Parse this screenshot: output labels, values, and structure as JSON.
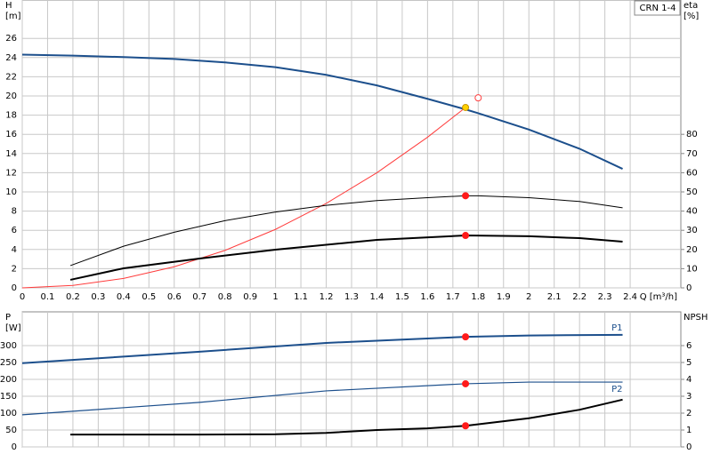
{
  "chart_data": [
    {
      "type": "line",
      "annotation": "CRN 1-4",
      "ylabel": [
        "H",
        "[m]"
      ],
      "y2label": [
        "eta",
        "[%]"
      ],
      "xlabel": "Q [m³/h]",
      "xlim": [
        0,
        2.6
      ],
      "xticks": [
        0,
        0.1,
        0.2,
        0.3,
        0.4,
        0.5,
        0.6,
        0.7,
        0.8,
        0.9,
        1.0,
        1.1,
        1.2,
        1.3,
        1.4,
        1.5,
        1.6,
        1.7,
        1.8,
        1.9,
        2.0,
        2.1,
        2.2,
        2.3,
        2.4
      ],
      "ylim": [
        0,
        30
      ],
      "yticks": [
        0,
        2,
        4,
        6,
        8,
        10,
        12,
        14,
        16,
        18,
        20,
        22,
        24,
        26
      ],
      "y2lim": [
        0,
        150
      ],
      "y2ticks": [
        0,
        10,
        20,
        30,
        40,
        50,
        60,
        70,
        80
      ],
      "grid": true,
      "series": [
        {
          "color": "#1c4f8c",
          "linewidth": 2,
          "x": [
            0,
            0.2,
            0.4,
            0.6,
            0.8,
            1.0,
            1.2,
            1.4,
            1.6,
            1.75,
            1.8,
            2.0,
            2.2,
            2.37
          ],
          "values": [
            24.3,
            24.2,
            24.05,
            23.85,
            23.5,
            23.0,
            22.2,
            21.1,
            19.7,
            18.6,
            18.2,
            16.5,
            14.5,
            12.4
          ]
        },
        {
          "color": "#ff3b3b",
          "linewidth": 1,
          "x": [
            0,
            0.2,
            0.4,
            0.6,
            0.8,
            1.0,
            1.2,
            1.4,
            1.6,
            1.75
          ],
          "values": [
            0,
            0.25,
            0.98,
            2.2,
            3.9,
            6.1,
            8.8,
            12.0,
            15.7,
            18.8
          ]
        },
        {
          "color": "#000000",
          "linewidth": 1,
          "axis": "y2",
          "x": [
            0.19,
            0.4,
            0.6,
            0.8,
            1.0,
            1.2,
            1.4,
            1.6,
            1.75,
            1.8,
            2.0,
            2.2,
            2.37
          ],
          "values": [
            11.6,
            21.7,
            29,
            35,
            39.5,
            43,
            45.5,
            47,
            48,
            48,
            47,
            45,
            41.7
          ]
        },
        {
          "color": "#000000",
          "linewidth": 2,
          "axis": "y2",
          "x": [
            0.19,
            0.4,
            0.7,
            1.0,
            1.4,
            1.75,
            2.0,
            2.2,
            2.37
          ],
          "values": [
            4.2,
            10.2,
            15.3,
            19.9,
            25,
            27.3,
            26.9,
            25.9,
            24.1
          ]
        }
      ],
      "markers": [
        {
          "x": 1.75,
          "y": 18.8,
          "color": "#ffd200",
          "edge": "#c89600"
        },
        {
          "x": 1.8,
          "y": 19.8,
          "color": "#ff3b3b",
          "hollow": true
        },
        {
          "x": 1.75,
          "y": 48,
          "axis": "y2",
          "color": "#ff1a1a"
        },
        {
          "x": 1.75,
          "y": 27.3,
          "axis": "y2",
          "color": "#ff1a1a"
        }
      ]
    },
    {
      "type": "line",
      "ylabel": [
        "P",
        "[W]"
      ],
      "y2label": [
        "NPSH"
      ],
      "xlim": [
        0,
        2.6
      ],
      "xticks": [
        0,
        0.1,
        0.2,
        0.3,
        0.4,
        0.5,
        0.6,
        0.7,
        0.8,
        0.9,
        1.0,
        1.1,
        1.2,
        1.3,
        1.4,
        1.5,
        1.6,
        1.7,
        1.8,
        1.9,
        2.0,
        2.1,
        2.2,
        2.3,
        2.4
      ],
      "ylim": [
        0,
        400
      ],
      "yticks": [
        0,
        50,
        100,
        150,
        200,
        250,
        300
      ],
      "y2lim": [
        0,
        8
      ],
      "y2ticks": [
        0,
        1,
        2,
        3,
        4,
        5,
        6
      ],
      "grid": true,
      "series": [
        {
          "name": "P1",
          "label_position": "above",
          "color": "#1c4f8c",
          "linewidth": 2,
          "x": [
            0,
            0.7,
            1.2,
            1.75,
            2.0,
            2.37
          ],
          "values": [
            248,
            282,
            308,
            326,
            330,
            332
          ]
        },
        {
          "name": "P2",
          "label_position": "below",
          "color": "#1c4f8c",
          "linewidth": 1.2,
          "x": [
            0,
            0.7,
            1.2,
            1.75,
            2.0,
            2.37
          ],
          "values": [
            95,
            132,
            166,
            187,
            192,
            192
          ]
        },
        {
          "color": "#000000",
          "linewidth": 2,
          "axis": "y2",
          "x": [
            0.19,
            0.7,
            1.0,
            1.2,
            1.4,
            1.6,
            1.75,
            2.0,
            2.2,
            2.37
          ],
          "values": [
            0.73,
            0.73,
            0.75,
            0.83,
            1.0,
            1.1,
            1.25,
            1.7,
            2.2,
            2.8
          ]
        }
      ],
      "markers": [
        {
          "x": 1.75,
          "y": 326,
          "color": "#ff1a1a"
        },
        {
          "x": 1.75,
          "y": 187,
          "color": "#ff1a1a"
        },
        {
          "x": 1.75,
          "y": 1.25,
          "axis": "y2",
          "color": "#ff1a1a"
        }
      ]
    }
  ]
}
